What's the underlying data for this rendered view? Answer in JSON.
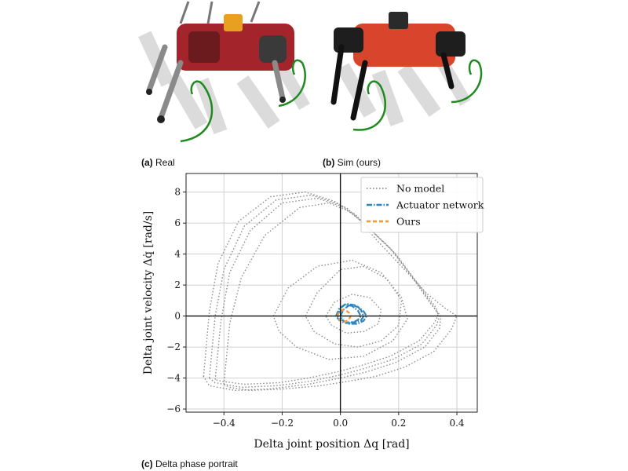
{
  "figure": {
    "captions": {
      "a": {
        "tag": "(a)",
        "text": "Real"
      },
      "b": {
        "tag": "(b)",
        "text": "Sim (ours)"
      },
      "c": {
        "tag": "(c)",
        "text": "Delta phase portrait"
      }
    }
  },
  "colors": {
    "no_model": "#8c8c8c",
    "actuator_network": "#2e86c1",
    "ours": "#f39c3d",
    "trajectory": "#1f8a1f",
    "robot_real": "#a3242b",
    "robot_sim": "#d9452c"
  },
  "chart_data": {
    "type": "line",
    "xlabel": "Delta joint position Δq [rad]",
    "ylabel": "Delta joint velocity Δq̇ [rad/s]",
    "xlim": [
      -0.53,
      0.47
    ],
    "ylim": [
      -6.2,
      9.2
    ],
    "xticks": [
      -0.4,
      -0.2,
      0.0,
      0.2,
      0.4
    ],
    "xtick_labels": [
      "−0.4",
      "−0.2",
      "0.0",
      "0.2",
      "0.4"
    ],
    "yticks": [
      -6,
      -4,
      -2,
      0,
      2,
      4,
      6,
      8
    ],
    "ytick_labels": [
      "−6",
      "−4",
      "−2",
      "0",
      "2",
      "4",
      "6",
      "8"
    ],
    "grid": true,
    "legend_position": "top-right",
    "series": [
      {
        "name": "No model",
        "style": "dotted",
        "color": "#8c8c8c",
        "loops": [
          {
            "x": [
              -0.45,
              -0.43,
              -0.4,
              -0.33,
              -0.22,
              -0.1,
              0.0,
              0.08,
              0.18,
              0.26,
              0.32,
              0.34,
              0.33,
              0.28,
              0.18,
              0.08,
              0.0,
              -0.1,
              -0.22,
              -0.34,
              -0.43,
              -0.45
            ],
            "y": [
              -4.0,
              0.0,
              3.0,
              5.8,
              7.5,
              7.8,
              7.2,
              6.0,
              4.2,
              2.2,
              0.6,
              0.0,
              -0.6,
              -1.8,
              -2.8,
              -3.4,
              -3.8,
              -4.2,
              -4.5,
              -4.6,
              -4.3,
              -4.0
            ]
          },
          {
            "x": [
              -0.47,
              -0.45,
              -0.42,
              -0.35,
              -0.24,
              -0.12,
              -0.02,
              0.07,
              0.17,
              0.25,
              0.31,
              0.345,
              0.34,
              0.29,
              0.19,
              0.09,
              0.0,
              -0.11,
              -0.24,
              -0.36,
              -0.45,
              -0.47
            ],
            "y": [
              -3.9,
              0.3,
              3.4,
              6.1,
              7.7,
              8.0,
              7.4,
              6.2,
              4.4,
              2.4,
              0.8,
              0.0,
              -0.8,
              -2.0,
              -3.0,
              -3.6,
              -4.0,
              -4.4,
              -4.7,
              -4.8,
              -4.5,
              -3.9
            ]
          },
          {
            "x": [
              -0.43,
              -0.41,
              -0.38,
              -0.31,
              -0.2,
              -0.08,
              0.02,
              0.09,
              0.19,
              0.27,
              0.33,
              0.335,
              0.32,
              0.27,
              0.17,
              0.07,
              -0.01,
              -0.11,
              -0.21,
              -0.33,
              -0.41,
              -0.43
            ],
            "y": [
              -4.1,
              -0.3,
              2.8,
              5.5,
              7.3,
              7.6,
              7.0,
              5.8,
              4.0,
              2.0,
              0.5,
              0.0,
              -0.5,
              -1.6,
              -2.6,
              -3.2,
              -3.6,
              -4.0,
              -4.3,
              -4.4,
              -4.2,
              -4.1
            ]
          },
          {
            "x": [
              -0.4,
              -0.38,
              -0.34,
              -0.26,
              -0.14,
              -0.04,
              0.05,
              0.12,
              0.22,
              0.3,
              0.36,
              0.4,
              0.38,
              0.32,
              0.22,
              0.12,
              0.03,
              -0.07,
              -0.19,
              -0.31,
              -0.38,
              -0.4
            ],
            "y": [
              -4.4,
              -0.5,
              2.5,
              5.2,
              7.0,
              7.3,
              6.6,
              5.0,
              3.0,
              1.4,
              0.5,
              0.0,
              -0.9,
              -2.3,
              -3.3,
              -3.9,
              -4.2,
              -4.5,
              -4.7,
              -4.8,
              -4.6,
              -4.4
            ]
          },
          {
            "x": [
              -0.12,
              -0.08,
              0.0,
              0.08,
              0.16,
              0.21,
              0.2,
              0.14,
              0.06,
              -0.02,
              -0.09,
              -0.12
            ],
            "y": [
              0.0,
              1.5,
              3.0,
              3.2,
              2.4,
              1.0,
              -0.6,
              -1.6,
              -2.0,
              -1.8,
              -1.0,
              0.0
            ]
          },
          {
            "x": [
              -0.23,
              -0.18,
              -0.08,
              0.04,
              0.14,
              0.21,
              0.23,
              0.18,
              0.08,
              -0.04,
              -0.15,
              -0.21,
              -0.23
            ],
            "y": [
              0.0,
              1.8,
              3.2,
              3.6,
              2.8,
              1.2,
              -0.2,
              -1.6,
              -2.6,
              -2.8,
              -2.0,
              -1.0,
              0.0
            ]
          },
          {
            "x": [
              -0.05,
              -0.02,
              0.04,
              0.1,
              0.14,
              0.13,
              0.08,
              0.02,
              -0.03,
              -0.05
            ],
            "y": [
              0.0,
              0.9,
              1.4,
              1.2,
              0.4,
              -0.5,
              -1.0,
              -1.1,
              -0.6,
              0.0
            ]
          }
        ]
      },
      {
        "name": "Actuator network",
        "style": "dashdot",
        "color": "#2e86c1",
        "loops": [
          {
            "x": [
              -0.01,
              0.0,
              0.02,
              0.05,
              0.07,
              0.08,
              0.07,
              0.05,
              0.02,
              0.0,
              -0.01
            ],
            "y": [
              0.0,
              0.5,
              0.8,
              0.7,
              0.4,
              0.0,
              -0.3,
              -0.4,
              -0.4,
              -0.2,
              0.0
            ]
          },
          {
            "x": [
              0.0,
              0.01,
              0.03,
              0.06,
              0.08,
              0.09,
              0.08,
              0.06,
              0.03,
              0.01,
              0.0
            ],
            "y": [
              0.0,
              0.4,
              0.7,
              0.6,
              0.3,
              0.0,
              -0.3,
              -0.5,
              -0.5,
              -0.3,
              0.0
            ]
          },
          {
            "x": [
              -0.015,
              -0.005,
              0.015,
              0.04,
              0.06,
              0.07,
              0.06,
              0.04,
              0.015,
              -0.005,
              -0.015
            ],
            "y": [
              0.0,
              0.45,
              0.75,
              0.65,
              0.35,
              0.0,
              -0.25,
              -0.45,
              -0.45,
              -0.25,
              0.0
            ]
          }
        ]
      },
      {
        "name": "Ours",
        "style": "dashed",
        "color": "#f39c3d",
        "loops": [
          {
            "x": [
              -0.01,
              -0.005,
              0.005,
              0.02,
              0.03,
              0.035,
              0.03,
              0.02,
              0.005,
              -0.005,
              -0.01
            ],
            "y": [
              0.0,
              0.25,
              0.4,
              0.35,
              0.2,
              0.0,
              -0.2,
              -0.35,
              -0.35,
              -0.2,
              0.0
            ]
          }
        ]
      }
    ]
  }
}
